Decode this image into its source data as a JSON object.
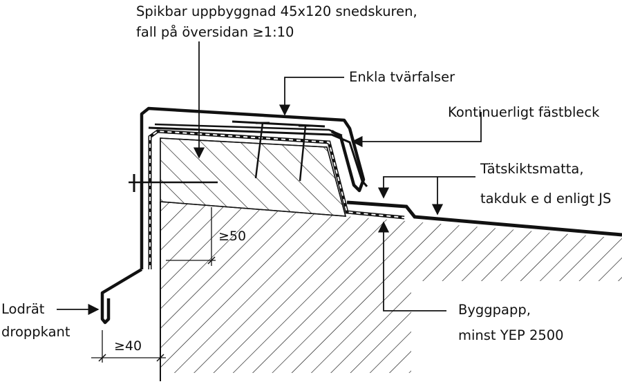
{
  "labels": {
    "spikbar_line1": "Spikbar uppbyggnad 45x120 snedskuren,",
    "spikbar_line2": "fall på översidan ≥1:10",
    "enkla_tvarfalser": "Enkla tvärfalser",
    "kontinuerligt_fastbleck": "Kontinuerligt fästbleck",
    "tatskiktsmatta_line1": "Tätskiktsmatta,",
    "tatskiktsmatta_line2": "takduk e d enligt JS",
    "lodrat_line1": "Lodrät",
    "lodrat_line2": "droppkant",
    "byggpapp_line1": "Byggpapp,",
    "byggpapp_line2": "minst YEP 2500",
    "dim_50": "≥50",
    "dim_40": "≥40"
  },
  "colors": {
    "ink": "#111111",
    "background": "#ffffff"
  }
}
